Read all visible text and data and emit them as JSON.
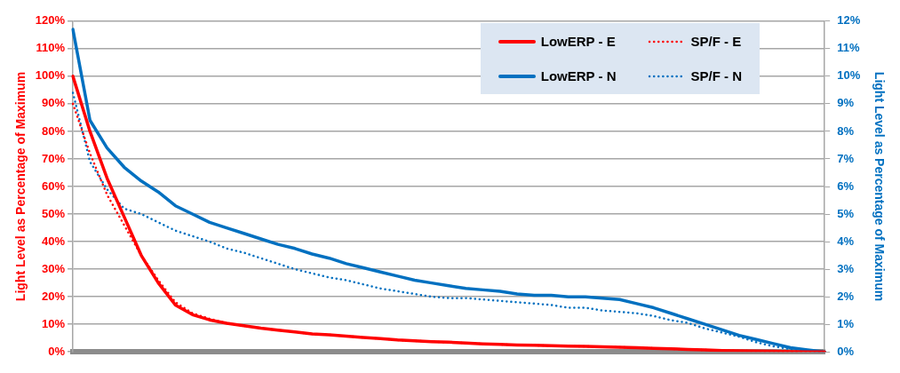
{
  "chart_data": {
    "type": "line",
    "ylabel": "Light Level as Percentage of Maximum",
    "y2label": "Light Level as Percentage of Maximum",
    "categories": [
      null,
      null,
      null,
      null,
      null,
      null,
      null,
      null,
      null,
      null,
      null,
      null,
      null,
      null,
      null,
      null,
      null,
      null,
      null,
      null,
      null,
      null,
      null,
      null,
      null,
      null,
      null,
      null,
      null,
      null,
      null,
      null,
      null,
      null,
      null,
      null,
      null,
      null,
      null,
      null,
      null,
      null,
      null,
      null,
      null
    ],
    "series": [
      {
        "name": "LowERP - E",
        "color": "#ff0000",
        "line_style": "solid",
        "axis": "y",
        "values": [
          100,
          80,
          63,
          49,
          35,
          25,
          17,
          13.5,
          11.6,
          10.4,
          9.5,
          8.6,
          7.9,
          7.2,
          6.5,
          6.2,
          5.7,
          5.2,
          4.8,
          4.3,
          4.0,
          3.7,
          3.5,
          3.2,
          2.9,
          2.7,
          2.5,
          2.4,
          2.2,
          2.1,
          2.0,
          1.8,
          1.7,
          1.5,
          1.3,
          1.1,
          0.9,
          0.7,
          0.5,
          0.4,
          0.3,
          0.2,
          0.1,
          0,
          0
        ]
      },
      {
        "name": "SP/F - E",
        "color": "#ff0000",
        "line_style": "dotted",
        "axis": "y",
        "values": [
          90,
          72,
          57,
          46,
          35,
          26,
          18,
          14,
          12,
          10.4,
          9.5,
          8.6,
          7.9,
          7.2,
          6.5,
          6.2,
          5.7,
          5.2,
          4.8,
          4.3,
          4.0,
          3.7,
          3.5,
          3.2,
          2.9,
          2.7,
          2.5,
          2.4,
          2.2,
          2.1,
          2.0,
          1.8,
          1.7,
          1.5,
          1.3,
          1.1,
          0.9,
          0.7,
          0.5,
          0.4,
          0.3,
          0.2,
          0.1,
          0,
          0
        ]
      },
      {
        "name": "LowERP - N",
        "color": "#0070c0",
        "line_style": "solid",
        "axis": "y2",
        "values": [
          11.7,
          8.4,
          7.4,
          6.7,
          6.2,
          5.8,
          5.3,
          5.0,
          4.7,
          4.5,
          4.3,
          4.1,
          3.9,
          3.75,
          3.55,
          3.4,
          3.2,
          3.05,
          2.9,
          2.75,
          2.6,
          2.5,
          2.4,
          2.3,
          2.25,
          2.2,
          2.1,
          2.05,
          2.05,
          2.0,
          2.0,
          1.95,
          1.9,
          1.75,
          1.6,
          1.4,
          1.2,
          1.0,
          0.8,
          0.6,
          0.45,
          0.3,
          0.15,
          0.07,
          0
        ]
      },
      {
        "name": "SP/F - N",
        "color": "#0070c0",
        "line_style": "dotted",
        "axis": "y2",
        "values": [
          9.4,
          6.9,
          5.9,
          5.2,
          5.0,
          4.7,
          4.4,
          4.2,
          4.0,
          3.75,
          3.6,
          3.4,
          3.2,
          3.0,
          2.85,
          2.7,
          2.6,
          2.45,
          2.3,
          2.2,
          2.1,
          2.0,
          1.95,
          1.95,
          1.9,
          1.85,
          1.8,
          1.75,
          1.7,
          1.6,
          1.6,
          1.5,
          1.45,
          1.4,
          1.3,
          1.15,
          1.05,
          0.85,
          0.7,
          0.55,
          0.35,
          0.2,
          0.1,
          0.06,
          0
        ]
      }
    ],
    "ylim": [
      0,
      120
    ],
    "yticks": [
      {
        "value": 0,
        "label": "0%"
      },
      {
        "value": 10,
        "label": "10%"
      },
      {
        "value": 20,
        "label": "20%"
      },
      {
        "value": 30,
        "label": "30%"
      },
      {
        "value": 40,
        "label": "40%"
      },
      {
        "value": 50,
        "label": "50%"
      },
      {
        "value": 60,
        "label": "60%"
      },
      {
        "value": 70,
        "label": "70%"
      },
      {
        "value": 80,
        "label": "80%"
      },
      {
        "value": 90,
        "label": "90%"
      },
      {
        "value": 100,
        "label": "100%"
      },
      {
        "value": 110,
        "label": "110%"
      },
      {
        "value": 120,
        "label": "120%"
      }
    ],
    "y2lim": [
      0,
      12
    ],
    "y2ticks": [
      {
        "value": 0,
        "label": "0%"
      },
      {
        "value": 1,
        "label": "1%"
      },
      {
        "value": 2,
        "label": "2%"
      },
      {
        "value": 3,
        "label": "3%"
      },
      {
        "value": 4,
        "label": "4%"
      },
      {
        "value": 5,
        "label": "5%"
      },
      {
        "value": 6,
        "label": "6%"
      },
      {
        "value": 7,
        "label": "7%"
      },
      {
        "value": 8,
        "label": "8%"
      },
      {
        "value": 9,
        "label": "9%"
      },
      {
        "value": 10,
        "label": "10%"
      },
      {
        "value": 11,
        "label": "11%"
      },
      {
        "value": 12,
        "label": "12%"
      }
    ],
    "grid": "y",
    "legend": "top right",
    "marker": "none"
  }
}
